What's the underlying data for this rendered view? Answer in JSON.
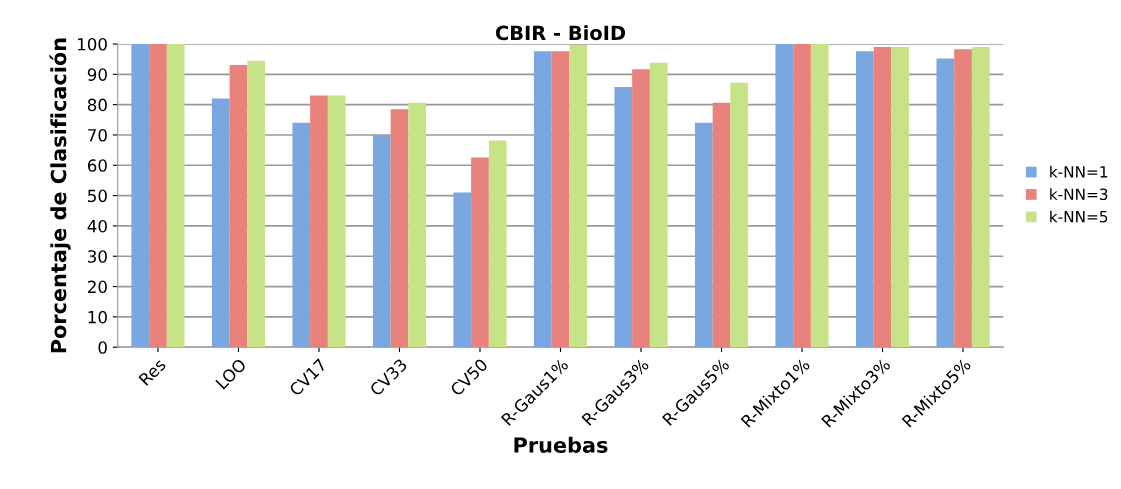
{
  "chart_data": {
    "type": "bar",
    "title": "CBIR - BioID",
    "xlabel": "Pruebas",
    "ylabel": "Porcentaje de Clasificación",
    "categories": [
      "Res",
      "LOO",
      "CV17",
      "CV33",
      "CV50",
      "R-Gaus1%",
      "R-Gaus3%",
      "R-Gaus5%",
      "R-Mixto1%",
      "R-Mixto3%",
      "R-Mixto5%"
    ],
    "series": [
      {
        "name": "k-NN=1",
        "color": "#7ba7e0",
        "values": [
          100,
          82,
          74,
          70,
          51,
          97.6,
          85.8,
          74,
          100,
          97.6,
          95.2
        ]
      },
      {
        "name": "k-NN=3",
        "color": "#e8827c",
        "values": [
          100,
          93.1,
          83,
          78.5,
          62.6,
          97.6,
          91.7,
          80.6,
          100,
          99,
          98.3
        ]
      },
      {
        "name": "k-NN=5",
        "color": "#c8e287",
        "values": [
          100,
          94.5,
          83,
          80.6,
          68.2,
          99.7,
          93.8,
          87.2,
          100,
          99,
          99
        ]
      }
    ],
    "ylim": [
      0,
      100
    ],
    "yticks": [
      0,
      10,
      20,
      30,
      40,
      50,
      60,
      70,
      80,
      90,
      100
    ],
    "grid": "y",
    "legend": "right"
  }
}
